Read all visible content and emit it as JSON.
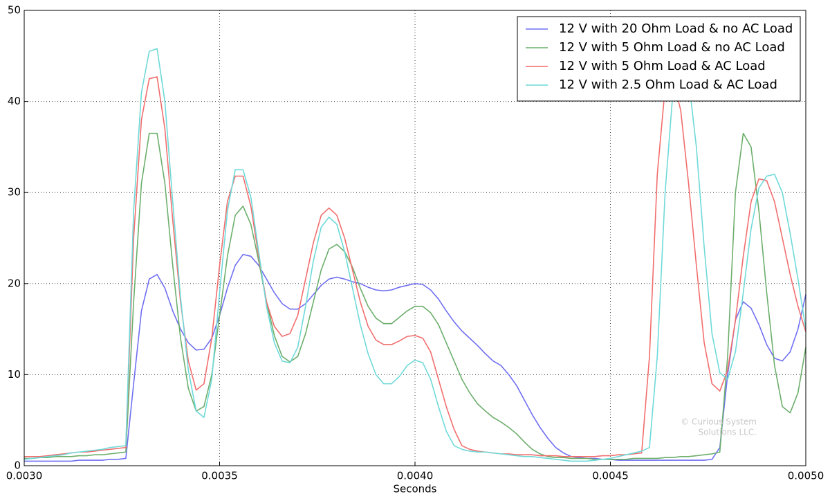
{
  "chart_data": {
    "type": "line",
    "xlabel": "Seconds",
    "annotation": [
      "© Curious System",
      "Solutions LLC."
    ],
    "xlim": [
      0.003,
      0.005
    ],
    "ylim": [
      0,
      50
    ],
    "xticks": [
      {
        "value": 0.003,
        "label": "0.0030"
      },
      {
        "value": 0.0035,
        "label": "0.0035"
      },
      {
        "value": 0.004,
        "label": "0.0040"
      },
      {
        "value": 0.0045,
        "label": "0.0045"
      },
      {
        "value": 0.005,
        "label": "0.0050"
      }
    ],
    "yticks": [
      0,
      10,
      20,
      30,
      40,
      50
    ],
    "grid": true,
    "legend": "upper right",
    "x": [
      0.003,
      0.00302,
      0.00304,
      0.00306,
      0.00308,
      0.0031,
      0.00312,
      0.00314,
      0.00316,
      0.00318,
      0.0032,
      0.00322,
      0.00324,
      0.00326,
      0.00328,
      0.0033,
      0.00332,
      0.00334,
      0.00336,
      0.00338,
      0.0034,
      0.00342,
      0.00344,
      0.00346,
      0.00348,
      0.0035,
      0.00352,
      0.00354,
      0.00356,
      0.00358,
      0.0036,
      0.00362,
      0.00364,
      0.00366,
      0.00368,
      0.0037,
      0.00372,
      0.00374,
      0.00376,
      0.00378,
      0.0038,
      0.00382,
      0.00384,
      0.00386,
      0.00388,
      0.0039,
      0.00392,
      0.00394,
      0.00396,
      0.00398,
      0.004,
      0.00402,
      0.00404,
      0.00406,
      0.00408,
      0.0041,
      0.00412,
      0.00414,
      0.00416,
      0.00418,
      0.0042,
      0.00422,
      0.00424,
      0.00426,
      0.00428,
      0.0043,
      0.00432,
      0.00434,
      0.00436,
      0.00438,
      0.0044,
      0.00442,
      0.00444,
      0.00446,
      0.00448,
      0.0045,
      0.00452,
      0.00454,
      0.00456,
      0.00458,
      0.0046,
      0.00462,
      0.00464,
      0.00466,
      0.00468,
      0.0047,
      0.00472,
      0.00474,
      0.00476,
      0.00478,
      0.0048,
      0.00482,
      0.00484,
      0.00486,
      0.00488,
      0.0049,
      0.00492,
      0.00494,
      0.00496,
      0.00498,
      0.005
    ],
    "series": [
      {
        "name": "12 V with 20 Ohm Load & no AC Load",
        "color": "#6f6ff2",
        "values": [
          0.5,
          0.5,
          0.5,
          0.5,
          0.5,
          0.5,
          0.5,
          0.6,
          0.6,
          0.6,
          0.6,
          0.7,
          0.7,
          0.8,
          9,
          17,
          20.5,
          21,
          19.5,
          17,
          15,
          13.5,
          12.7,
          12.8,
          14,
          16.5,
          19.5,
          22,
          23.2,
          23,
          22,
          20.5,
          19,
          17.8,
          17.2,
          17.2,
          17.8,
          18.8,
          19.8,
          20.5,
          20.7,
          20.5,
          20.2,
          20,
          19.6,
          19.3,
          19.2,
          19.3,
          19.6,
          19.8,
          20,
          19.9,
          19.3,
          18.3,
          17,
          15.8,
          14.8,
          14,
          13.2,
          12.3,
          11.5,
          11,
          10,
          8.8,
          7.2,
          5.6,
          4.2,
          3,
          2,
          1.4,
          1,
          0.9,
          0.8,
          0.8,
          0.7,
          0.7,
          0.6,
          0.6,
          0.6,
          0.6,
          0.6,
          0.6,
          0.6,
          0.6,
          0.6,
          0.6,
          0.6,
          0.6,
          0.7,
          2,
          10,
          16,
          18,
          17.3,
          15.5,
          13.3,
          11.8,
          11.5,
          12.5,
          15,
          18.8
        ]
      },
      {
        "name": "12 V with 5 Ohm Load & no AC Load",
        "color": "#6cae6c",
        "values": [
          0.8,
          0.8,
          0.9,
          0.9,
          1,
          1,
          1,
          1.1,
          1.1,
          1.2,
          1.2,
          1.3,
          1.4,
          1.5,
          18,
          31,
          36.5,
          36.5,
          31,
          22,
          14,
          8.5,
          6,
          6.5,
          10,
          16.5,
          23,
          27.5,
          28.5,
          26.5,
          22.5,
          18,
          14.3,
          12,
          11.4,
          12,
          14.5,
          18,
          21.5,
          23.8,
          24.3,
          23.5,
          21.8,
          19.5,
          17.5,
          16.2,
          15.6,
          15.6,
          16.3,
          17,
          17.5,
          17.5,
          16.8,
          15.5,
          13.5,
          11.5,
          9.5,
          8,
          6.8,
          6,
          5.3,
          4.8,
          4.2,
          3.5,
          2.6,
          1.8,
          1.3,
          1,
          0.9,
          0.9,
          0.8,
          0.8,
          0.8,
          0.7,
          0.7,
          0.7,
          0.7,
          0.7,
          0.8,
          0.8,
          0.8,
          0.8,
          0.9,
          0.9,
          1,
          1,
          1.1,
          1.2,
          1.3,
          1.5,
          12,
          30,
          36.5,
          35,
          28,
          19,
          11,
          6.5,
          5.8,
          8,
          13
        ]
      },
      {
        "name": "12 V with 5 Ohm Load & AC Load",
        "color": "#f26d6d",
        "values": [
          1,
          1,
          1,
          1.1,
          1.2,
          1.3,
          1.4,
          1.5,
          1.5,
          1.6,
          1.7,
          1.8,
          1.9,
          2,
          25,
          38,
          42.5,
          42.7,
          37,
          27,
          18,
          11.5,
          8.3,
          9,
          14,
          22,
          29,
          31.8,
          31.8,
          28.5,
          23,
          18,
          15.3,
          14.2,
          14.5,
          16.5,
          20.5,
          24.5,
          27.5,
          28.3,
          27.5,
          25,
          21.5,
          18,
          15.3,
          13.8,
          13.3,
          13.3,
          13.7,
          14.2,
          14.3,
          14,
          12.5,
          9.5,
          6.5,
          4,
          2.2,
          1.8,
          1.6,
          1.5,
          1.4,
          1.3,
          1.3,
          1.2,
          1.2,
          1.2,
          1.1,
          1.1,
          1.1,
          1,
          1,
          1,
          1,
          1,
          1.1,
          1.1,
          1.2,
          1.2,
          1.3,
          1.4,
          12,
          32,
          41.5,
          42.6,
          39,
          31,
          22,
          13.5,
          9,
          8.2,
          10.5,
          16,
          23,
          29,
          31.5,
          31.3,
          29,
          25,
          21,
          17.5,
          14.7
        ]
      },
      {
        "name": "12 V with 2.5 Ohm Load & AC Load",
        "color": "#6fd9d9",
        "values": [
          0.7,
          0.8,
          0.9,
          1,
          1.1,
          1.2,
          1.4,
          1.5,
          1.6,
          1.7,
          1.8,
          2,
          2.1,
          2.2,
          28,
          41,
          45.5,
          45.8,
          40,
          29,
          18.5,
          10.5,
          6,
          5.3,
          9.5,
          19,
          28,
          32.5,
          32.5,
          29.5,
          23.5,
          17.5,
          13.5,
          11.5,
          11.3,
          13,
          17.5,
          22.5,
          26.2,
          27.3,
          26.5,
          23.5,
          19.5,
          15.5,
          12.3,
          10,
          9,
          9,
          9.8,
          11,
          11.6,
          11.3,
          9.5,
          6.5,
          3.8,
          2.2,
          1.8,
          1.6,
          1.5,
          1.5,
          1.4,
          1.3,
          1.2,
          1.1,
          1,
          1,
          0.9,
          0.8,
          0.7,
          0.6,
          0.5,
          0.5,
          0.5,
          0.6,
          0.7,
          0.8,
          1,
          1.2,
          1.4,
          1.6,
          2,
          12,
          30,
          41,
          44.5,
          42.5,
          35,
          24,
          14.5,
          10.2,
          9.5,
          12.5,
          19,
          26,
          30.5,
          31.8,
          32,
          30,
          25.5,
          20.5,
          15
        ]
      }
    ]
  }
}
